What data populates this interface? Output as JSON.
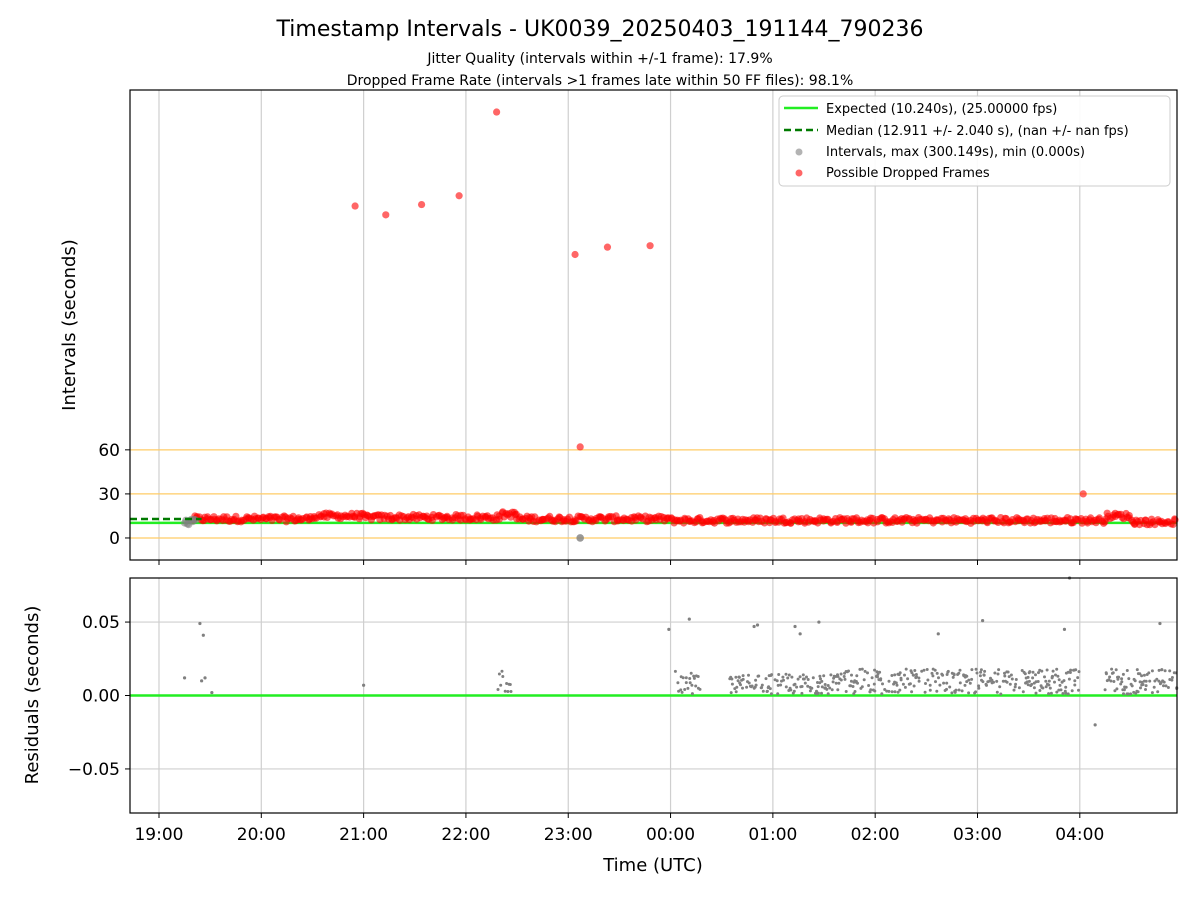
{
  "figure": {
    "title": "Timestamp Intervals - UK0039_20250403_191144_790236",
    "subtitle_line1": "Jitter Quality (intervals within +/-1 frame): 17.9%",
    "subtitle_line2": "Dropped Frame Rate (intervals >1 frames late within 50 FF files): 98.1%"
  },
  "colors": {
    "expected": "#22ee22",
    "median": "#007a00",
    "interval": "#808080",
    "dropped": "#ff0000",
    "refline": "#ffcc66",
    "grid": "#cfcfcf"
  },
  "chart_data": [
    {
      "type": "scatter",
      "panel": "intervals",
      "xlabel": "Time (UTC)",
      "ylabel": "Intervals (seconds)",
      "xlim": [
        "18:43",
        "04:57"
      ],
      "ylim": [
        -15,
        305
      ],
      "x_tick_labels": [
        "19:00",
        "20:00",
        "21:00",
        "22:00",
        "23:00",
        "00:00",
        "01:00",
        "02:00",
        "03:00",
        "04:00"
      ],
      "y_ticks": [
        0,
        30,
        60
      ],
      "grid": "vertical",
      "reference_lines": [
        0,
        30,
        60
      ],
      "legend_position": "top-right",
      "legend": [
        "Expected (10.240s), (25.00000 fps)",
        "Median (12.911 +/- 2.040 s), (nan +/- nan fps)",
        "Intervals, max (300.149s), min (0.000s)",
        "Possible Dropped Frames"
      ],
      "expected_value": 10.24,
      "median_value": 12.911,
      "outliers": [
        {
          "x": "20:55",
          "y": 226
        },
        {
          "x": "21:13",
          "y": 220
        },
        {
          "x": "21:34",
          "y": 227
        },
        {
          "x": "21:56",
          "y": 233
        },
        {
          "x": "22:18",
          "y": 290
        },
        {
          "x": "23:04",
          "y": 193
        },
        {
          "x": "23:23",
          "y": 198
        },
        {
          "x": "23:48",
          "y": 199
        },
        {
          "x": "23:07",
          "y": 62
        },
        {
          "x": "04:02",
          "y": 30
        }
      ],
      "band_segments": [
        {
          "from": "19:20",
          "to": "20:30",
          "y": 13
        },
        {
          "from": "20:30",
          "to": "21:00",
          "y": 15
        },
        {
          "from": "21:00",
          "to": "22:20",
          "y": 14
        },
        {
          "from": "22:20",
          "to": "22:30",
          "y": 16
        },
        {
          "from": "22:30",
          "to": "00:00",
          "y": 13
        },
        {
          "from": "00:00",
          "to": "04:15",
          "y": 12
        },
        {
          "from": "04:15",
          "to": "04:30",
          "y": 15
        },
        {
          "from": "04:30",
          "to": "04:57",
          "y": 11
        }
      ],
      "zero_points": [
        {
          "x": "23:07",
          "y": 0
        }
      ]
    },
    {
      "type": "scatter",
      "panel": "residuals",
      "xlabel": "Time (UTC)",
      "ylabel": "Residuals (seconds)",
      "ylim": [
        -0.08,
        0.08
      ],
      "y_ticks": [
        -0.05,
        0.0,
        0.05
      ],
      "y_tick_labels": [
        "−0.05",
        "0.00",
        "0.05"
      ],
      "grid": "both",
      "baseline": 0.0,
      "points": [
        {
          "x": "19:15",
          "y": 0.012
        },
        {
          "x": "19:24",
          "y": 0.049
        },
        {
          "x": "19:26",
          "y": 0.041
        },
        {
          "x": "19:25",
          "y": 0.01
        },
        {
          "x": "19:27",
          "y": 0.012
        },
        {
          "x": "19:31",
          "y": 0.002
        },
        {
          "x": "21:00",
          "y": 0.007
        },
        {
          "x": "23:59",
          "y": 0.045
        },
        {
          "x": "00:11",
          "y": 0.052
        },
        {
          "x": "00:49",
          "y": 0.047
        },
        {
          "x": "00:51",
          "y": 0.048
        },
        {
          "x": "01:13",
          "y": 0.047
        },
        {
          "x": "01:16",
          "y": 0.042
        },
        {
          "x": "01:27",
          "y": 0.05
        },
        {
          "x": "02:37",
          "y": 0.042
        },
        {
          "x": "03:03",
          "y": 0.051
        },
        {
          "x": "03:51",
          "y": 0.045
        },
        {
          "x": "03:54",
          "y": 0.08
        },
        {
          "x": "04:09",
          "y": -0.02
        },
        {
          "x": "04:47",
          "y": 0.049
        }
      ],
      "clusters": [
        {
          "from": "22:19",
          "to": "22:27",
          "y_min": 0.001,
          "y_max": 0.017
        },
        {
          "from": "00:03",
          "to": "00:17",
          "y_min": 0.001,
          "y_max": 0.017
        },
        {
          "from": "00:35",
          "to": "01:40",
          "y_min": 0.001,
          "y_max": 0.015
        },
        {
          "from": "01:40",
          "to": "04:00",
          "y_min": 0.001,
          "y_max": 0.018
        },
        {
          "from": "04:15",
          "to": "04:57",
          "y_min": 0.001,
          "y_max": 0.018
        }
      ]
    }
  ]
}
